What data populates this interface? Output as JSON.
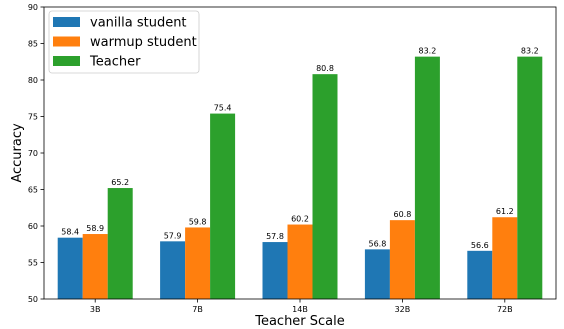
{
  "chart_data": {
    "type": "bar",
    "categories": [
      "3B",
      "7B",
      "14B",
      "32B",
      "72B"
    ],
    "series": [
      {
        "name": "vanilla student",
        "color": "#1f77b4",
        "values": [
          58.4,
          57.9,
          57.8,
          56.8,
          56.6
        ]
      },
      {
        "name": "warmup student",
        "color": "#ff7f0e",
        "values": [
          58.9,
          59.8,
          60.2,
          60.8,
          61.2
        ]
      },
      {
        "name": "Teacher",
        "color": "#2ca02c",
        "values": [
          65.2,
          75.4,
          80.8,
          83.2,
          83.2
        ]
      }
    ],
    "xlabel": "Teacher Scale",
    "ylabel": "Accuracy",
    "ylim": [
      50,
      90
    ],
    "yticks": [
      50,
      55,
      60,
      65,
      70,
      75,
      80,
      85,
      90
    ],
    "legend": "top-left",
    "grid": false
  }
}
